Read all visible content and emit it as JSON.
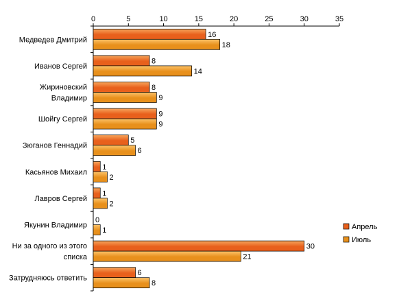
{
  "chart_data": {
    "type": "bar",
    "orientation": "horizontal",
    "categories": [
      "Медведев Дмитрий",
      "Иванов Сергей",
      "Жириновский Владимир",
      "Шойгу Сергей",
      "Зюганов Геннадий",
      "Касьянов Михаил",
      "Лавров Сергей",
      "Якунин Владимир",
      "Ни за одного из этого списка",
      "Затрудняюсь ответить"
    ],
    "category_lines": [
      [
        "Медведев Дмитрий"
      ],
      [
        "Иванов Сергей"
      ],
      [
        "Жириновский",
        "Владимир"
      ],
      [
        "Шойгу Сергей"
      ],
      [
        "Зюганов Геннадий"
      ],
      [
        "Касьянов Михаил"
      ],
      [
        "Лавров Сергей"
      ],
      [
        "Якунин Владимир"
      ],
      [
        "Ни за одного из этого",
        "списка"
      ],
      [
        "Затрудняюсь ответить"
      ]
    ],
    "series": [
      {
        "name": "Апрель",
        "values": [
          16,
          8,
          8,
          9,
          5,
          1,
          1,
          0,
          30,
          6
        ],
        "color": "#e8601c",
        "color_light": "#f7a65c"
      },
      {
        "name": "Июль",
        "values": [
          18,
          14,
          9,
          9,
          6,
          2,
          2,
          1,
          21,
          8
        ],
        "color": "#e8901c",
        "color_light": "#fcc36a"
      }
    ],
    "xlim": [
      0,
      35
    ],
    "x_ticks": [
      0,
      5,
      10,
      15,
      20,
      25,
      30,
      35
    ],
    "x_axis_position": "top",
    "legend": "right",
    "grid": false
  }
}
